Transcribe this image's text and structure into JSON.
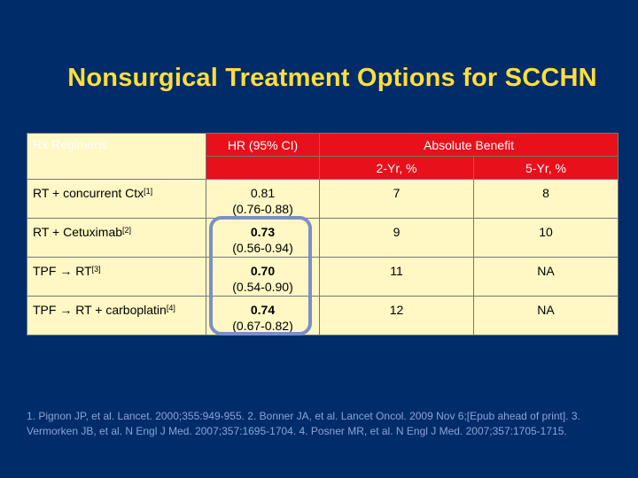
{
  "title": "Nonsurgical Treatment Options for SCCHN",
  "table": {
    "headers": {
      "regimen": "Rx Regimens",
      "hr": "HR (95% CI)",
      "benefit": "Absolute Benefit",
      "yr2": "2-Yr, %",
      "yr5": "5-Yr, %"
    },
    "rows": [
      {
        "regimen": "RT + concurrent Ctx",
        "ref": "[1]",
        "hr": "0.81",
        "ci": "(0.76-0.88)",
        "yr2": "7",
        "yr5": "8",
        "hr_bold": false
      },
      {
        "regimen": "RT + Cetuximab",
        "ref": "[2]",
        "hr": "0.73",
        "ci": "(0.56-0.94)",
        "yr2": "9",
        "yr5": "10",
        "hr_bold": true
      },
      {
        "regimen": "TPF → RT",
        "ref": "[3]",
        "hr": "0.70",
        "ci": "(0.54-0.90)",
        "yr2": "11",
        "yr5": "NA",
        "hr_bold": true
      },
      {
        "regimen": "TPF → RT + carboplatin",
        "ref": "[4]",
        "hr": "0.74",
        "ci": "(0.67-0.82)",
        "yr2": "12",
        "yr5": "NA",
        "hr_bold": true
      }
    ]
  },
  "references": "1. Pignon JP, et al. Lancet. 2000;355:949-955. 2. Bonner JA, et al. Lancet Oncol. 2009 Nov 6;[Epub ahead of print]. 3. Vermorken JB, et al. N Engl J Med. 2007;357:1695-1704. 4. Posner MR, et al. N Engl J Med. 2007;357:1705-1715.",
  "colors": {
    "background": "#002c6a",
    "title": "#ffdf3a",
    "header": "#e8101a",
    "cell": "#fff7c4",
    "highlight": "#7b8fc7",
    "references": "#8aa3d6"
  }
}
